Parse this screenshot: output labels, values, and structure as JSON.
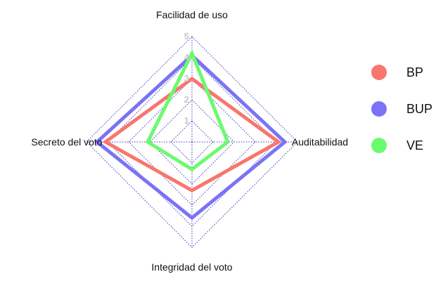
{
  "chart_data": {
    "type": "radar",
    "axes": [
      "Facilidad de uso",
      "Auditabilidad",
      "Integridad del voto",
      "Secreto del voto"
    ],
    "rlim": [
      0,
      5
    ],
    "ticks": [
      "1",
      "2",
      "3",
      "4",
      "5"
    ],
    "grid": true,
    "grid_color": "#3a3ab8",
    "legend_position": "right",
    "series": [
      {
        "name": "BP",
        "color": "#f8766d",
        "values": [
          3.0,
          4.1,
          2.3,
          4.1
        ]
      },
      {
        "name": "BUP",
        "color": "#7a73f6",
        "values": [
          4.1,
          4.4,
          3.6,
          4.5
        ]
      },
      {
        "name": "VE",
        "color": "#6cfa6f",
        "values": [
          4.2,
          1.7,
          1.3,
          2.1
        ]
      }
    ]
  }
}
